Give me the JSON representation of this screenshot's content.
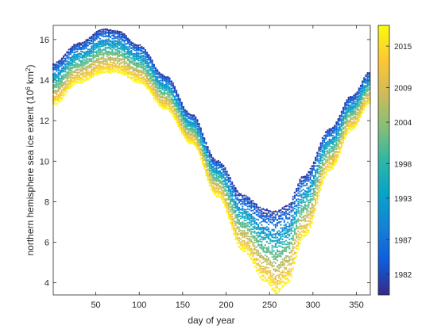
{
  "chart_data": {
    "type": "scatter",
    "title": "",
    "xlabel": "day of year",
    "ylabel_prefix": "northern hemisphere sea ice extent (10",
    "ylabel_exp1": "6",
    "ylabel_mid": " km",
    "ylabel_exp2": "2",
    "ylabel_suffix": ")",
    "xlim": [
      1,
      366
    ],
    "ylim": [
      3.4,
      16.7
    ],
    "xticks": [
      50,
      100,
      150,
      200,
      250,
      300,
      350
    ],
    "yticks": [
      4,
      6,
      8,
      10,
      12,
      14,
      16
    ],
    "grid": false,
    "series_year_range": [
      1979,
      2018
    ],
    "colorbar": {
      "colormap": "parula",
      "range": [
        1979,
        2018
      ],
      "ticks": [
        1982,
        1987,
        1993,
        1998,
        2004,
        2009,
        2015
      ],
      "colors": [
        "#352A87",
        "#0F5CDD",
        "#1481D6",
        "#06A4CA",
        "#2EB7A4",
        "#87BF77",
        "#D1BB59",
        "#FEC832",
        "#F9FB0E"
      ]
    },
    "climatology_points": [
      {
        "day": 1,
        "earliest": 14.8,
        "latest": 12.8
      },
      {
        "day": 30,
        "earliest": 15.8,
        "latest": 13.9
      },
      {
        "day": 60,
        "earliest": 16.5,
        "latest": 14.4
      },
      {
        "day": 75,
        "earliest": 16.4,
        "latest": 14.4
      },
      {
        "day": 100,
        "earliest": 15.7,
        "latest": 13.9
      },
      {
        "day": 130,
        "earliest": 14.2,
        "latest": 12.6
      },
      {
        "day": 160,
        "earliest": 12.3,
        "latest": 10.9
      },
      {
        "day": 190,
        "earliest": 10.0,
        "latest": 8.3
      },
      {
        "day": 220,
        "earliest": 8.3,
        "latest": 5.6
      },
      {
        "day": 245,
        "earliest": 7.6,
        "latest": 4.1
      },
      {
        "day": 258,
        "earliest": 7.5,
        "latest": 3.5
      },
      {
        "day": 270,
        "earliest": 7.8,
        "latest": 4.0
      },
      {
        "day": 290,
        "earliest": 9.3,
        "latest": 6.3
      },
      {
        "day": 320,
        "earliest": 11.6,
        "latest": 9.6
      },
      {
        "day": 345,
        "earliest": 13.2,
        "latest": 11.6
      },
      {
        "day": 366,
        "earliest": 14.4,
        "latest": 12.9
      }
    ]
  }
}
